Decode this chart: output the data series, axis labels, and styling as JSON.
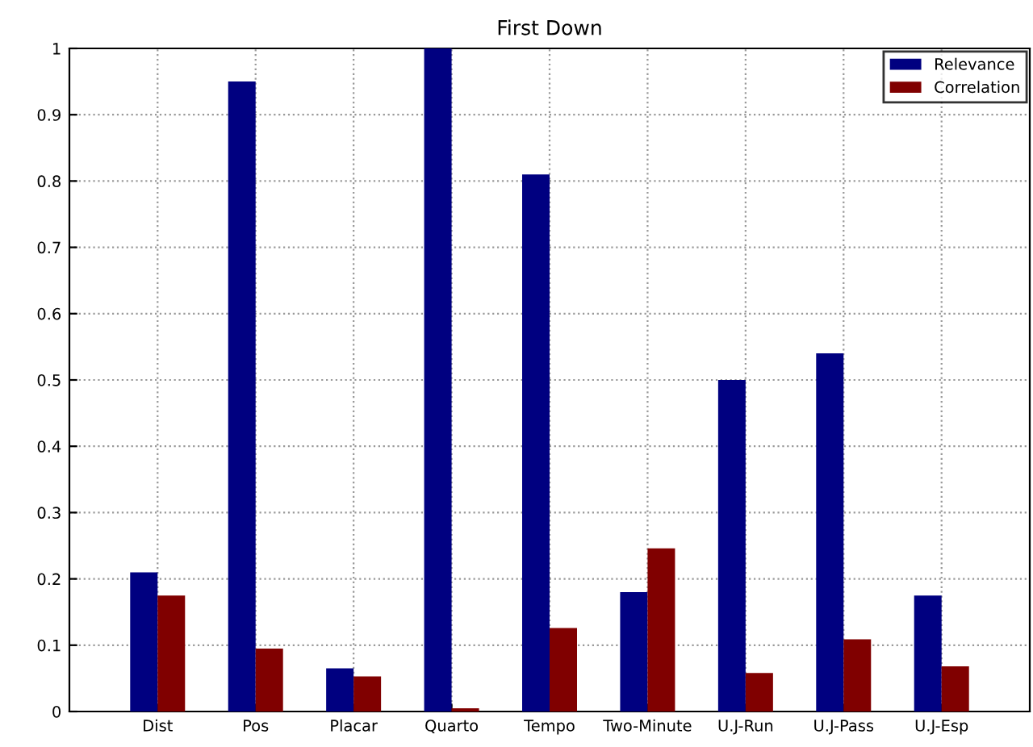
{
  "chart_data": {
    "type": "bar",
    "title": "First Down",
    "categories": [
      "Dist",
      "Pos",
      "Placar",
      "Quarto",
      "Tempo",
      "Two-Minute",
      "U.J-Run",
      "U.J-Pass",
      "U.J-Esp"
    ],
    "series": [
      {
        "name": "Relevance",
        "color": "#000080",
        "values": [
          0.21,
          0.95,
          0.065,
          1.0,
          0.81,
          0.18,
          0.5,
          0.54,
          0.175
        ]
      },
      {
        "name": "Correlation",
        "color": "#800000",
        "values": [
          0.175,
          0.095,
          0.053,
          0.005,
          0.126,
          0.246,
          0.058,
          0.109,
          0.068
        ]
      }
    ],
    "ylim": [
      0,
      1
    ],
    "yticks": [
      0,
      0.1,
      0.2,
      0.3,
      0.4,
      0.5,
      0.6,
      0.7,
      0.8,
      0.9,
      1
    ],
    "grid": true,
    "legend": "top right"
  }
}
